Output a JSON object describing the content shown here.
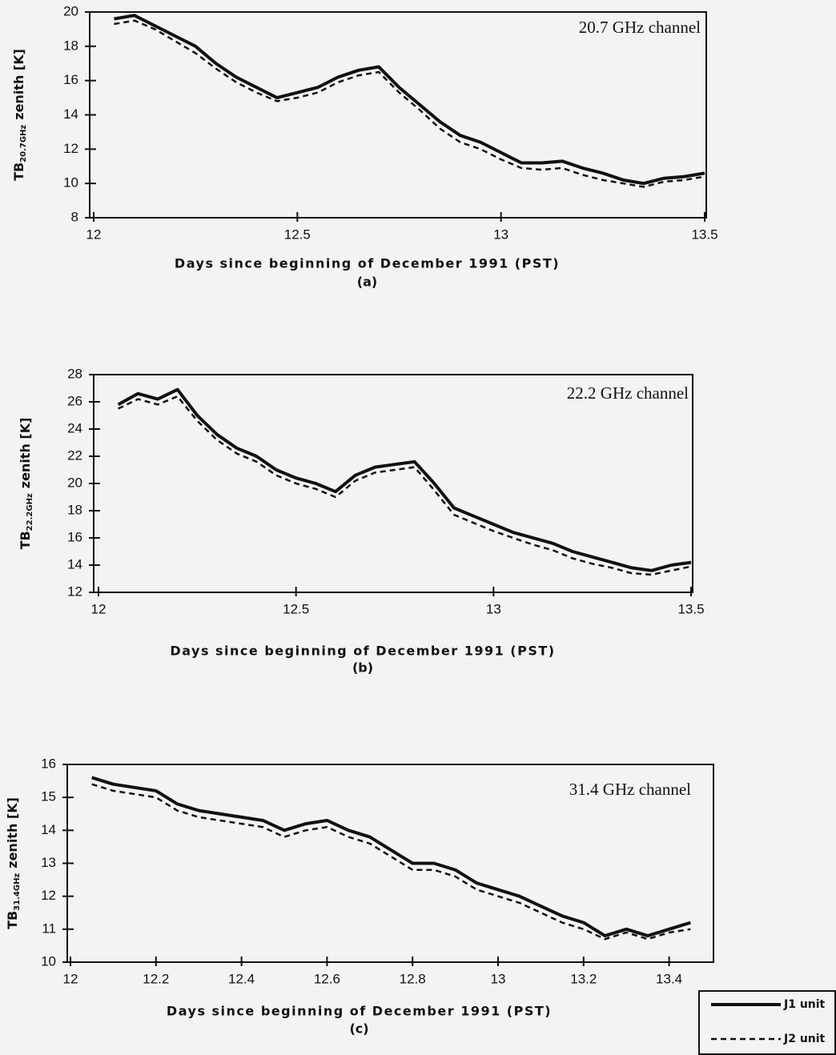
{
  "chart_data": [
    {
      "type": "line",
      "annotation": "20.7 GHz channel",
      "ylabel": "TB",
      "ylabel_sub": "20.7GHz",
      "ylabel_rest": "zenith [K]",
      "xlabel": "Days since beginning of December 1991 (PST)",
      "caption": "(a)",
      "xlim": [
        12,
        13.5
      ],
      "xticks": [
        12,
        12.5,
        13,
        13.5
      ],
      "ylim": [
        8,
        20
      ],
      "yticks": [
        8,
        10,
        12,
        14,
        16,
        18,
        20
      ],
      "x": [
        12.05,
        12.1,
        12.15,
        12.2,
        12.25,
        12.3,
        12.35,
        12.4,
        12.45,
        12.5,
        12.55,
        12.6,
        12.65,
        12.7,
        12.75,
        12.8,
        12.85,
        12.9,
        12.95,
        13.0,
        13.05,
        13.1,
        13.15,
        13.2,
        13.25,
        13.3,
        13.35,
        13.4,
        13.45,
        13.5
      ],
      "series": [
        {
          "name": "J1 unit",
          "color": "#111111",
          "style": "solid",
          "values": [
            19.6,
            19.8,
            19.2,
            18.6,
            18.0,
            17.0,
            16.2,
            15.6,
            15.0,
            15.3,
            15.6,
            16.2,
            16.6,
            16.8,
            15.6,
            14.6,
            13.6,
            12.8,
            12.4,
            11.8,
            11.2,
            11.2,
            11.3,
            10.9,
            10.6,
            10.2,
            10.0,
            10.3,
            10.4,
            10.6
          ]
        },
        {
          "name": "J2 unit",
          "color": "#111111",
          "style": "dashed",
          "values": [
            19.3,
            19.5,
            19.0,
            18.3,
            17.6,
            16.7,
            15.9,
            15.3,
            14.8,
            15.0,
            15.3,
            15.9,
            16.3,
            16.5,
            15.3,
            14.3,
            13.2,
            12.4,
            12.0,
            11.4,
            10.9,
            10.8,
            10.9,
            10.5,
            10.2,
            10.0,
            9.8,
            10.1,
            10.2,
            10.4
          ]
        }
      ]
    },
    {
      "type": "line",
      "annotation": "22.2 GHz channel",
      "ylabel": "TB",
      "ylabel_sub": "22.2GHz",
      "ylabel_rest": "zenith [K]",
      "xlabel": "Days since beginning of December 1991 (PST)",
      "caption": "(b)",
      "xlim": [
        12,
        13.5
      ],
      "xticks": [
        12,
        12.5,
        13,
        13.5
      ],
      "ylim": [
        12,
        28
      ],
      "yticks": [
        12,
        14,
        16,
        18,
        20,
        22,
        24,
        26,
        28
      ],
      "x": [
        12.05,
        12.1,
        12.15,
        12.2,
        12.25,
        12.3,
        12.35,
        12.4,
        12.45,
        12.5,
        12.55,
        12.6,
        12.65,
        12.7,
        12.75,
        12.8,
        12.85,
        12.9,
        12.95,
        13.0,
        13.05,
        13.1,
        13.15,
        13.2,
        13.25,
        13.3,
        13.35,
        13.4,
        13.45,
        13.5
      ],
      "series": [
        {
          "name": "J1 unit",
          "color": "#111111",
          "style": "solid",
          "values": [
            25.8,
            26.6,
            26.2,
            26.9,
            25.0,
            23.6,
            22.6,
            22.0,
            21.0,
            20.4,
            20.0,
            19.4,
            20.6,
            21.2,
            21.4,
            21.6,
            20.0,
            18.2,
            17.6,
            17.0,
            16.4,
            16.0,
            15.6,
            15.0,
            14.6,
            14.2,
            13.8,
            13.6,
            14.0,
            14.2
          ]
        },
        {
          "name": "J2 unit",
          "color": "#111111",
          "style": "dashed",
          "values": [
            25.5,
            26.2,
            25.8,
            26.4,
            24.6,
            23.2,
            22.2,
            21.6,
            20.6,
            20.0,
            19.6,
            19.0,
            20.2,
            20.8,
            21.0,
            21.2,
            19.5,
            17.7,
            17.1,
            16.5,
            16.0,
            15.5,
            15.1,
            14.5,
            14.1,
            13.8,
            13.4,
            13.3,
            13.6,
            13.9
          ]
        }
      ]
    },
    {
      "type": "line",
      "annotation": "31.4 GHz channel",
      "ylabel": "TB",
      "ylabel_sub": "31.4GHz",
      "ylabel_rest": "zenith [K]",
      "xlabel": "Days since beginning of December 1991 (PST)",
      "caption": "(c)",
      "xlim": [
        12,
        13.5
      ],
      "xticks": [
        12,
        12.2,
        12.4,
        12.6,
        12.8,
        13,
        13.2,
        13.4
      ],
      "ylim": [
        10,
        16
      ],
      "yticks": [
        10,
        11,
        12,
        13,
        14,
        15,
        16
      ],
      "x": [
        12.05,
        12.1,
        12.15,
        12.2,
        12.25,
        12.3,
        12.35,
        12.4,
        12.45,
        12.5,
        12.55,
        12.6,
        12.65,
        12.7,
        12.75,
        12.8,
        12.85,
        12.9,
        12.95,
        13.0,
        13.05,
        13.1,
        13.15,
        13.2,
        13.25,
        13.3,
        13.35,
        13.4,
        13.45
      ],
      "series": [
        {
          "name": "J1 unit",
          "color": "#111111",
          "style": "solid",
          "values": [
            15.6,
            15.4,
            15.3,
            15.2,
            14.8,
            14.6,
            14.5,
            14.4,
            14.3,
            14.0,
            14.2,
            14.3,
            14.0,
            13.8,
            13.4,
            13.0,
            13.0,
            12.8,
            12.4,
            12.2,
            12.0,
            11.7,
            11.4,
            11.2,
            10.8,
            11.0,
            10.8,
            11.0,
            11.2
          ]
        },
        {
          "name": "J2 unit",
          "color": "#111111",
          "style": "dashed",
          "values": [
            15.4,
            15.2,
            15.1,
            15.0,
            14.6,
            14.4,
            14.3,
            14.2,
            14.1,
            13.8,
            14.0,
            14.1,
            13.8,
            13.6,
            13.2,
            12.8,
            12.8,
            12.6,
            12.2,
            12.0,
            11.8,
            11.5,
            11.2,
            11.0,
            10.7,
            10.9,
            10.7,
            10.9,
            11.0
          ]
        }
      ]
    }
  ]
}
